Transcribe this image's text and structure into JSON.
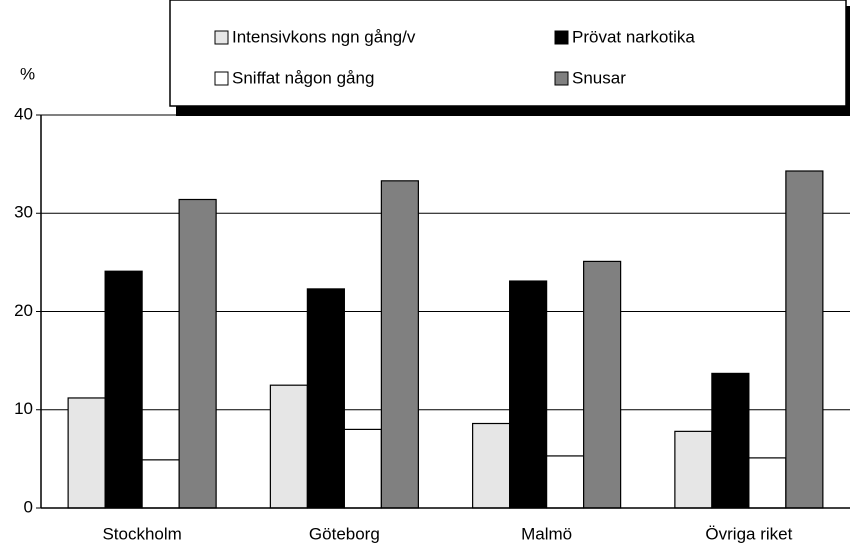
{
  "chart_data": {
    "type": "bar",
    "y_label": "%",
    "categories": [
      "Stockholm",
      "Göteborg",
      "Malmö",
      "Övriga riket"
    ],
    "series": [
      {
        "name": "Intensivkons ngn gång/v",
        "color": "#e6e6e6",
        "values": [
          11.2,
          12.5,
          8.6,
          7.8
        ]
      },
      {
        "name": "Prövat narkotika",
        "color": "#000000",
        "values": [
          24.1,
          22.3,
          23.1,
          13.7
        ]
      },
      {
        "name": "Sniffat någon gång",
        "color": "#ffffff",
        "values": [
          4.9,
          8.0,
          5.3,
          5.1
        ]
      },
      {
        "name": "Snusar",
        "color": "#808080",
        "values": [
          31.4,
          33.3,
          25.1,
          34.3
        ]
      }
    ],
    "ylim": [
      0,
      40
    ],
    "yticks": [
      0,
      10,
      20,
      30,
      40
    ],
    "grid": true,
    "legend": "top"
  }
}
